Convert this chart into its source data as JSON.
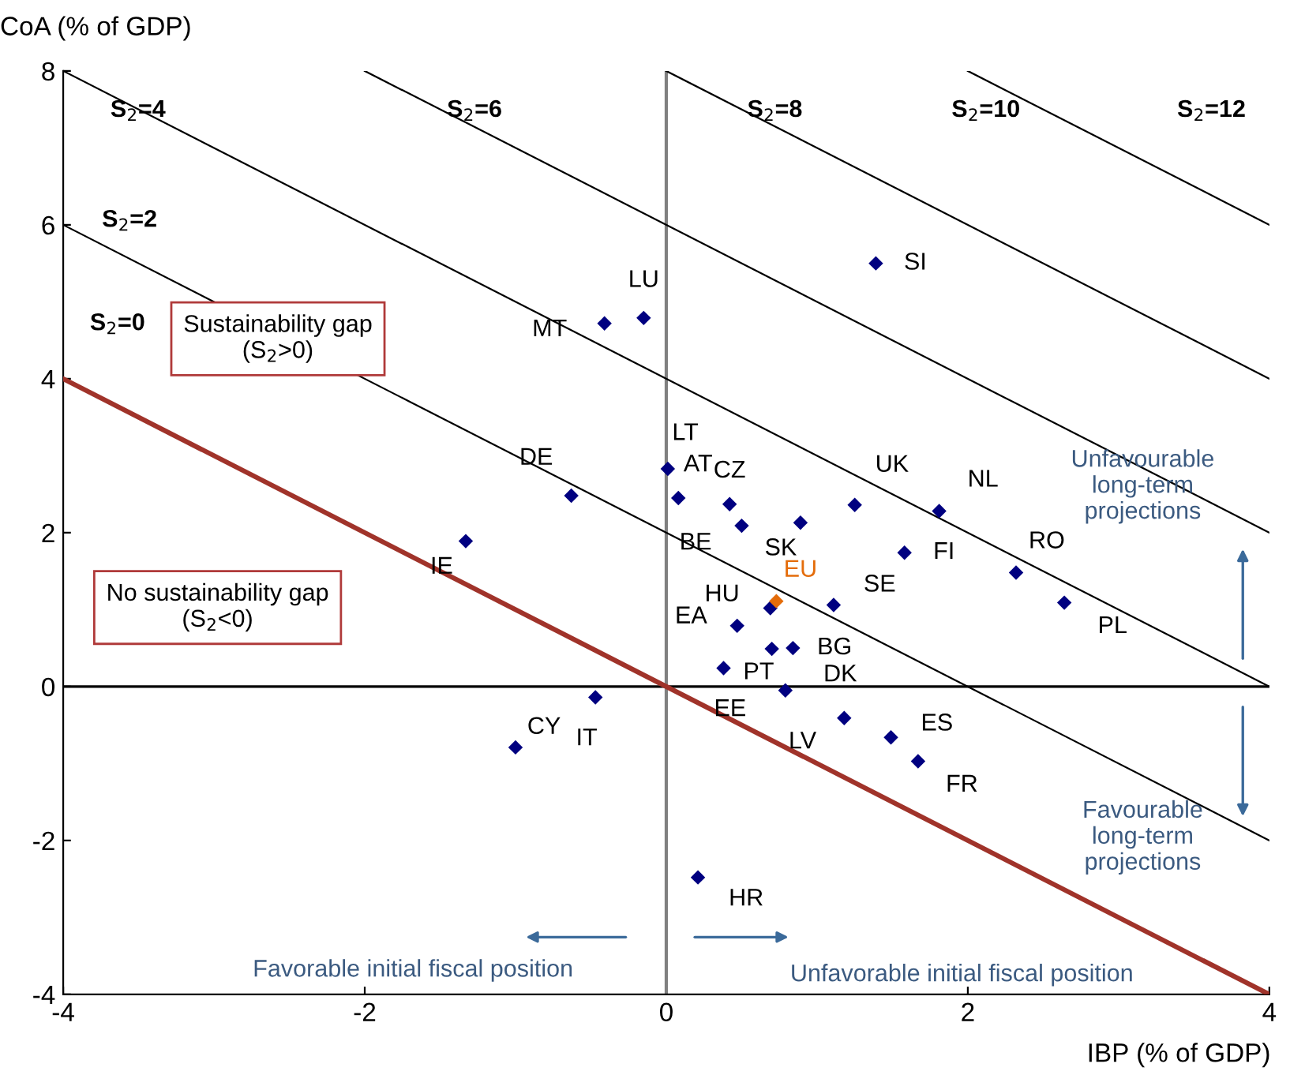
{
  "chart_data": {
    "type": "scatter",
    "xlabel": "IBP (% of GDP)",
    "ylabel": "CoA (% of GDP)",
    "xlim": [
      -4,
      4
    ],
    "ylim": [
      -4,
      8
    ],
    "xticks": [
      -4,
      -2,
      0,
      2,
      4
    ],
    "yticks": [
      -4,
      -2,
      0,
      2,
      4,
      6,
      8
    ],
    "grid": false,
    "legend": false,
    "marker": "diamond",
    "series": [
      {
        "color": "#000080",
        "x": [
          1.39,
          -0.15,
          -0.41,
          0.01,
          0.08,
          0.42,
          -0.63,
          0.5,
          0.89,
          1.25,
          1.81,
          1.58,
          2.32,
          2.64,
          1.11,
          0.69,
          0.47,
          0.84,
          0.7,
          0.38,
          0.79,
          1.18,
          1.49,
          1.67,
          -1.33,
          -0.47,
          -1.0,
          0.21
        ],
        "values": [
          5.5,
          4.79,
          4.72,
          2.83,
          2.45,
          2.37,
          2.48,
          2.09,
          2.13,
          2.36,
          2.28,
          1.74,
          1.48,
          1.09,
          1.06,
          1.02,
          0.79,
          0.5,
          0.49,
          0.24,
          -0.05,
          -0.41,
          -0.66,
          -0.97,
          1.89,
          -0.14,
          -0.79,
          -2.48
        ]
      },
      {
        "color": "#e46c0a",
        "x": [
          0.73
        ],
        "values": [
          1.11
        ]
      },
      {
        "type": "line",
        "marker": "none",
        "color": "#a0332a",
        "x": [
          -4,
          4
        ],
        "values": [
          4,
          -4
        ]
      },
      {
        "type": "line",
        "marker": "none",
        "color": "#000000",
        "x": [
          -4,
          4
        ],
        "values": [
          6,
          -2
        ]
      },
      {
        "type": "line",
        "marker": "none",
        "color": "#000000",
        "x": [
          -4,
          4
        ],
        "values": [
          8,
          0
        ]
      },
      {
        "type": "line",
        "marker": "none",
        "color": "#000000",
        "x": [
          -2,
          4
        ],
        "values": [
          8,
          2
        ]
      },
      {
        "type": "line",
        "marker": "none",
        "color": "#000000",
        "x": [
          0,
          4
        ],
        "values": [
          8,
          4
        ]
      },
      {
        "type": "line",
        "marker": "none",
        "color": "#000000",
        "x": [
          2,
          4
        ],
        "values": [
          8,
          6
        ]
      }
    ],
    "ref_lines": [
      {
        "axis": "y",
        "value": 0,
        "color": "#000000"
      },
      {
        "axis": "x",
        "value": 0,
        "color": "#808080"
      }
    ],
    "annotations": [
      {
        "text": "SI",
        "x": 1.39,
        "y": 5.5
      },
      {
        "text": "LU",
        "x": -0.15,
        "y": 4.79
      },
      {
        "text": "MT",
        "x": -0.41,
        "y": 4.72
      },
      {
        "text": "LT",
        "x": 0.01,
        "y": 2.83
      },
      {
        "text": "AT",
        "x": 0.08,
        "y": 2.45
      },
      {
        "text": "CZ",
        "x": 0.42,
        "y": 2.37
      },
      {
        "text": "DE",
        "x": -0.63,
        "y": 2.48
      },
      {
        "text": "BE",
        "x": 0.5,
        "y": 2.09
      },
      {
        "text": "SK",
        "x": 0.89,
        "y": 2.13
      },
      {
        "text": "UK",
        "x": 1.25,
        "y": 2.36
      },
      {
        "text": "NL",
        "x": 1.81,
        "y": 2.28
      },
      {
        "text": "FI",
        "x": 1.58,
        "y": 1.74
      },
      {
        "text": "RO",
        "x": 2.32,
        "y": 1.48
      },
      {
        "text": "PL",
        "x": 2.64,
        "y": 1.09
      },
      {
        "text": "SE",
        "x": 1.11,
        "y": 1.06
      },
      {
        "text": "HU",
        "x": 0.69,
        "y": 1.02
      },
      {
        "text": "EA",
        "x": 0.47,
        "y": 0.79
      },
      {
        "text": "BG",
        "x": 0.84,
        "y": 0.5
      },
      {
        "text": "PT",
        "x": 0.7,
        "y": 0.49
      },
      {
        "text": "EE",
        "x": 0.38,
        "y": 0.24
      },
      {
        "text": "DK",
        "x": 0.79,
        "y": -0.05
      },
      {
        "text": "LV",
        "x": 1.18,
        "y": -0.41
      },
      {
        "text": "ES",
        "x": 1.49,
        "y": -0.66
      },
      {
        "text": "FR",
        "x": 1.67,
        "y": -0.97
      },
      {
        "text": "IE",
        "x": -1.33,
        "y": 1.89
      },
      {
        "text": "IT",
        "x": -0.47,
        "y": -0.14
      },
      {
        "text": "CY",
        "x": -1.0,
        "y": -0.79
      },
      {
        "text": "HR",
        "x": 0.21,
        "y": -2.48
      },
      {
        "text": "EU",
        "x": 0.73,
        "y": 1.11
      },
      "S$_{2}$=0",
      "S$_{2}$=2",
      "S$_{2}$=4",
      "S$_{2}$=6",
      "S$_{2}$=8",
      "S$_{2}$=10",
      "S$_{2}$=12",
      "Sustainability gap\n(S$_{2}$>0)",
      "No sustainability gap\n(S$_{2}$<0)",
      "Unfavourable\nlong-term\nprojections",
      "Favourable\nlong-term\nprojections",
      "Favorable initial fiscal position",
      "Unfavorable initial fiscal position"
    ]
  }
}
